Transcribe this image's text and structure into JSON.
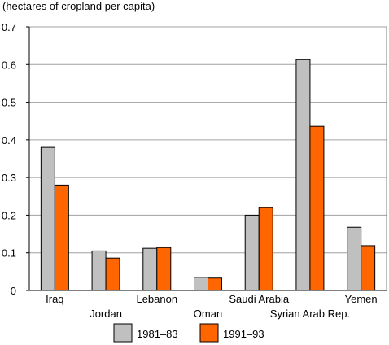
{
  "chart_data": {
    "type": "bar",
    "title": "",
    "unit_label": "(hectares of cropland per capita)",
    "xlabel": "",
    "ylabel": "",
    "ylim": [
      0,
      0.7
    ],
    "yticks": [
      "0",
      "0.1",
      "0.2",
      "0.3",
      "0.4",
      "0.5",
      "0.6",
      "0.7"
    ],
    "categories": [
      "Iraq",
      "Jordan",
      "Lebanon",
      "Oman",
      "Saudi Arabia",
      "Syrian Arab Rep.",
      "Yemen"
    ],
    "series": [
      {
        "name": "1981–83",
        "color": "#c0c0c0",
        "values": [
          0.38,
          0.105,
          0.112,
          0.035,
          0.2,
          0.613,
          0.168
        ]
      },
      {
        "name": "1991–93",
        "color": "#ff6600",
        "values": [
          0.28,
          0.086,
          0.114,
          0.033,
          0.22,
          0.436,
          0.119
        ]
      }
    ],
    "grid": true,
    "legend_position": "bottom"
  }
}
